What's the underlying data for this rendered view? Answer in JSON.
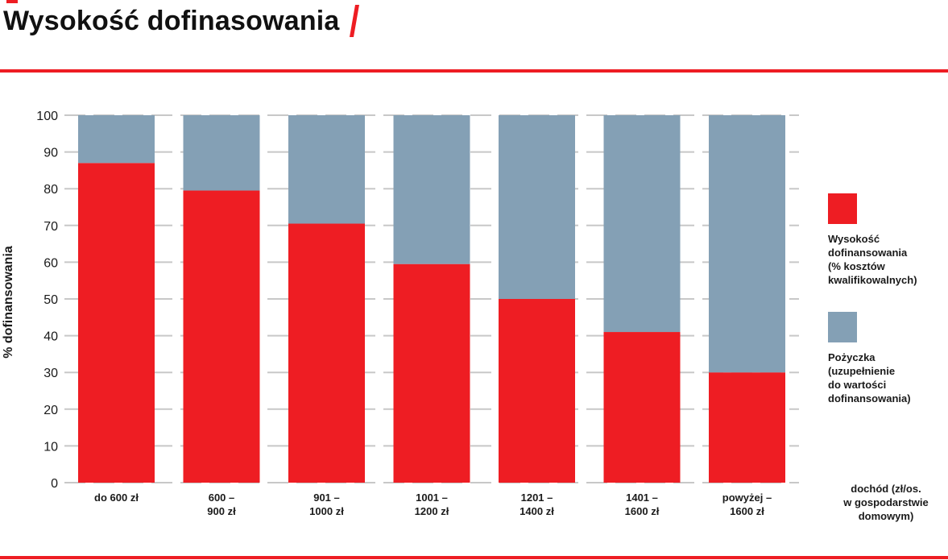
{
  "header": {
    "title": "Wysokość dofinasowania",
    "accent_color": "#ee1d23"
  },
  "chart_data": {
    "type": "bar",
    "stacked": true,
    "categories": [
      "do 600 zł",
      "600 –\n900 zł",
      "901 –\n1000 zł",
      "1001 –\n1200 zł",
      "1201 –\n1400 zł",
      "1401 –\n1600 zł",
      "powyżej –\n1600 zł"
    ],
    "series": [
      {
        "name": "Wysokość\ndofinansowania\n(% kosztów\nkwalifikowalnych)",
        "color": "#ee1d23",
        "values": [
          87,
          79.5,
          70.5,
          59.5,
          50,
          41,
          30
        ]
      },
      {
        "name": "Pożyczka\n(uzupełnienie\ndo wartości\ndofinansowania)",
        "color": "#84a0b5",
        "values": [
          13,
          20.5,
          29.5,
          40.5,
          50,
          59,
          70
        ]
      }
    ],
    "ylabel": "% dofinansowania",
    "xlabel": "dochód (zł/os.\nw gospodarstwie\ndomowym)",
    "ylim": [
      0,
      100
    ],
    "yticks": [
      0,
      10,
      20,
      30,
      40,
      50,
      60,
      70,
      80,
      90,
      100
    ],
    "grid": "dashed",
    "grid_color": "#c8c8c8",
    "legend_position": "right"
  }
}
